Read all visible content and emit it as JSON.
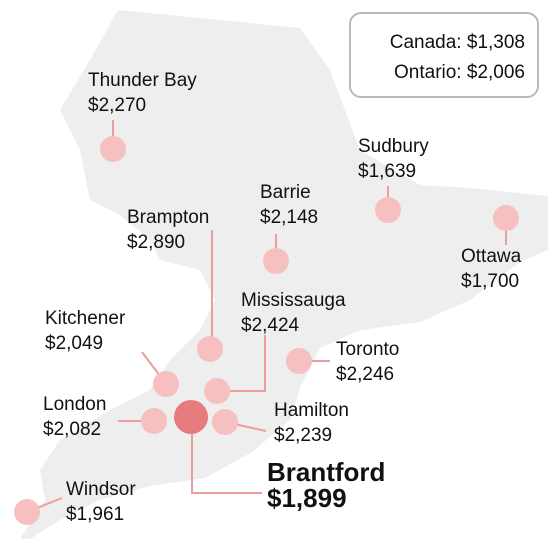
{
  "summary": {
    "canada_label": "Canada:",
    "canada_value": "$1,308",
    "ontario_label": "Ontario:",
    "ontario_value": "$2,006"
  },
  "colors": {
    "land": "#eeeeee",
    "dot": "#f7c0c0",
    "highlight_dot": "#e77b7e",
    "connector": "#ef9c9c",
    "text": "#111111"
  },
  "cities": [
    {
      "name": "Thunder Bay",
      "value": "$2,270"
    },
    {
      "name": "Sudbury",
      "value": "$1,639"
    },
    {
      "name": "Barrie",
      "value": "$2,148"
    },
    {
      "name": "Brampton",
      "value": "$2,890"
    },
    {
      "name": "Ottawa",
      "value": "$1,700"
    },
    {
      "name": "Mississauga",
      "value": "$2,424"
    },
    {
      "name": "Kitchener",
      "value": "$2,049"
    },
    {
      "name": "Toronto",
      "value": "$2,246"
    },
    {
      "name": "London",
      "value": "$2,082"
    },
    {
      "name": "Hamilton",
      "value": "$2,239"
    },
    {
      "name": "Windsor",
      "value": "$1,961"
    }
  ],
  "highlight": {
    "name": "Brantford",
    "value": "$1,899"
  }
}
